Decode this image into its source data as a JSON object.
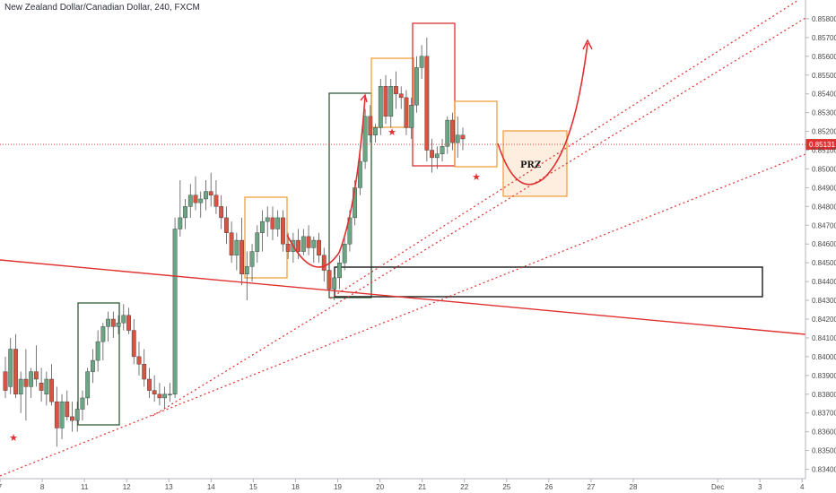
{
  "chart_data": {
    "type": "candlestick",
    "title": "New Zealand Dollar/Canadian Dollar, 240, FXCM",
    "ylim": [
      0.8335,
      0.859
    ],
    "yticks": [
      "0.85800",
      "0.85700",
      "0.85600",
      "0.85500",
      "0.85400",
      "0.85300",
      "0.85200",
      "0.85100",
      "0.85000",
      "0.84900",
      "0.84800",
      "0.84700",
      "0.84600",
      "0.84500",
      "0.84400",
      "0.84300",
      "0.84200",
      "0.84100",
      "0.84000",
      "0.83900",
      "0.83800",
      "0.83700",
      "0.83600",
      "0.83500",
      "0.83400"
    ],
    "xlim": [
      0,
      170
    ],
    "xticks": [
      {
        "label": "7",
        "x": 0
      },
      {
        "label": "8",
        "x": 9
      },
      {
        "label": "11",
        "x": 18
      },
      {
        "label": "12",
        "x": 27
      },
      {
        "label": "13",
        "x": 36
      },
      {
        "label": "14",
        "x": 45
      },
      {
        "label": "15",
        "x": 54
      },
      {
        "label": "18",
        "x": 63
      },
      {
        "label": "19",
        "x": 72
      },
      {
        "label": "20",
        "x": 81
      },
      {
        "label": "21",
        "x": 90
      },
      {
        "label": "22",
        "x": 99
      },
      {
        "label": "25",
        "x": 108
      },
      {
        "label": "26",
        "x": 117
      },
      {
        "label": "27",
        "x": 126
      },
      {
        "label": "28",
        "x": 135
      },
      {
        "label": "Dec",
        "x": 153
      },
      {
        "label": "3",
        "x": 162
      },
      {
        "label": "4",
        "x": 171
      }
    ],
    "current_price": "0.85131",
    "candles": [
      [
        0.8392,
        0.84,
        0.8378,
        0.8382
      ],
      [
        0.8384,
        0.841,
        0.838,
        0.8404
      ],
      [
        0.8404,
        0.8412,
        0.8378,
        0.838
      ],
      [
        0.838,
        0.8392,
        0.837,
        0.8388
      ],
      [
        0.8388,
        0.8404,
        0.8366,
        0.8384
      ],
      [
        0.8384,
        0.8394,
        0.8378,
        0.8392
      ],
      [
        0.8392,
        0.8406,
        0.8384,
        0.8388
      ],
      [
        0.8386,
        0.8394,
        0.8376,
        0.8382
      ],
      [
        0.838,
        0.8392,
        0.8374,
        0.8388
      ],
      [
        0.8388,
        0.8396,
        0.8374,
        0.8376
      ],
      [
        0.8376,
        0.8384,
        0.8352,
        0.8362
      ],
      [
        0.8362,
        0.838,
        0.8356,
        0.8376
      ],
      [
        0.8376,
        0.8382,
        0.8366,
        0.8368
      ],
      [
        0.8368,
        0.8376,
        0.836,
        0.8366
      ],
      [
        0.8366,
        0.8376,
        0.836,
        0.8372
      ],
      [
        0.8372,
        0.8382,
        0.8366,
        0.8378
      ],
      [
        0.8378,
        0.8394,
        0.8374,
        0.8392
      ],
      [
        0.8392,
        0.8404,
        0.8386,
        0.8398
      ],
      [
        0.8398,
        0.8414,
        0.8392,
        0.8408
      ],
      [
        0.8408,
        0.8418,
        0.8398,
        0.8416
      ],
      [
        0.8416,
        0.8424,
        0.8408,
        0.842
      ],
      [
        0.842,
        0.8424,
        0.841,
        0.8416
      ],
      [
        0.8416,
        0.8422,
        0.8412,
        0.8418
      ],
      [
        0.8418,
        0.8428,
        0.8414,
        0.8422
      ],
      [
        0.8422,
        0.8426,
        0.8412,
        0.8414
      ],
      [
        0.8414,
        0.842,
        0.8396,
        0.84
      ],
      [
        0.84,
        0.8408,
        0.839,
        0.8396
      ],
      [
        0.8396,
        0.8404,
        0.8384,
        0.8388
      ],
      [
        0.8388,
        0.8394,
        0.8378,
        0.8382
      ],
      [
        0.8382,
        0.839,
        0.8376,
        0.838
      ],
      [
        0.838,
        0.8386,
        0.8374,
        0.8378
      ],
      [
        0.8378,
        0.8384,
        0.8372,
        0.838
      ],
      [
        0.838,
        0.8386,
        0.8376,
        0.838
      ],
      [
        0.838,
        0.8474,
        0.8378,
        0.8468
      ],
      [
        0.8468,
        0.8494,
        0.8464,
        0.8474
      ],
      [
        0.8474,
        0.8484,
        0.8468,
        0.848
      ],
      [
        0.848,
        0.8492,
        0.8474,
        0.8486
      ],
      [
        0.8486,
        0.8496,
        0.8478,
        0.8482
      ],
      [
        0.8482,
        0.8488,
        0.8474,
        0.8484
      ],
      [
        0.8484,
        0.8494,
        0.8478,
        0.8488
      ],
      [
        0.8488,
        0.8498,
        0.848,
        0.8486
      ],
      [
        0.8486,
        0.8494,
        0.8476,
        0.848
      ],
      [
        0.848,
        0.8486,
        0.8468,
        0.8474
      ],
      [
        0.8474,
        0.848,
        0.846,
        0.8466
      ],
      [
        0.8466,
        0.8472,
        0.845,
        0.8454
      ],
      [
        0.8454,
        0.8466,
        0.8446,
        0.8462
      ],
      [
        0.8462,
        0.8474,
        0.8438,
        0.8444
      ],
      [
        0.8444,
        0.8456,
        0.843,
        0.8448
      ],
      [
        0.8448,
        0.846,
        0.844,
        0.8456
      ],
      [
        0.8456,
        0.847,
        0.845,
        0.8466
      ],
      [
        0.8466,
        0.8478,
        0.8456,
        0.8472
      ],
      [
        0.8472,
        0.848,
        0.8464,
        0.8474
      ],
      [
        0.8474,
        0.848,
        0.8462,
        0.8468
      ],
      [
        0.8468,
        0.8478,
        0.8464,
        0.8474
      ],
      [
        0.8474,
        0.8478,
        0.8456,
        0.846
      ],
      [
        0.846,
        0.8466,
        0.8452,
        0.8456
      ],
      [
        0.8456,
        0.8466,
        0.845,
        0.8462
      ],
      [
        0.8462,
        0.8468,
        0.8452,
        0.8456
      ],
      [
        0.8456,
        0.8468,
        0.8454,
        0.8464
      ],
      [
        0.8464,
        0.847,
        0.8454,
        0.8458
      ],
      [
        0.8458,
        0.8464,
        0.845,
        0.8462
      ],
      [
        0.8462,
        0.8466,
        0.845,
        0.8454
      ],
      [
        0.8454,
        0.8458,
        0.844,
        0.8446
      ],
      [
        0.8446,
        0.8452,
        0.8434,
        0.8436
      ],
      [
        0.8436,
        0.8444,
        0.843,
        0.8442
      ],
      [
        0.8442,
        0.8454,
        0.8436,
        0.845
      ],
      [
        0.845,
        0.8464,
        0.8446,
        0.846
      ],
      [
        0.846,
        0.8478,
        0.8456,
        0.8474
      ],
      [
        0.8474,
        0.8494,
        0.847,
        0.849
      ],
      [
        0.849,
        0.8508,
        0.8486,
        0.8504
      ],
      [
        0.8504,
        0.8532,
        0.85,
        0.8528
      ],
      [
        0.8528,
        0.8534,
        0.8514,
        0.8518
      ],
      [
        0.8518,
        0.8524,
        0.8514,
        0.8522
      ],
      [
        0.8522,
        0.8548,
        0.8518,
        0.8544
      ],
      [
        0.8544,
        0.855,
        0.8524,
        0.8528
      ],
      [
        0.8528,
        0.8548,
        0.8522,
        0.8544
      ],
      [
        0.8544,
        0.8552,
        0.8532,
        0.854
      ],
      [
        0.854,
        0.8544,
        0.8532,
        0.8538
      ],
      [
        0.8538,
        0.8542,
        0.8518,
        0.8522
      ],
      [
        0.8522,
        0.8538,
        0.8516,
        0.8534
      ],
      [
        0.8534,
        0.856,
        0.853,
        0.8554
      ],
      [
        0.8554,
        0.8566,
        0.8548,
        0.856
      ],
      [
        0.856,
        0.857,
        0.8504,
        0.851
      ],
      [
        0.851,
        0.8516,
        0.8498,
        0.8506
      ],
      [
        0.8506,
        0.8512,
        0.85,
        0.8508
      ],
      [
        0.8508,
        0.8516,
        0.8504,
        0.8512
      ],
      [
        0.8512,
        0.8528,
        0.8508,
        0.8526
      ],
      [
        0.8526,
        0.853,
        0.851,
        0.8514
      ],
      [
        0.8514,
        0.8528,
        0.8506,
        0.8518
      ],
      [
        0.8518,
        0.8522,
        0.851,
        0.8516
      ]
    ],
    "prz_label": "PRZ"
  }
}
